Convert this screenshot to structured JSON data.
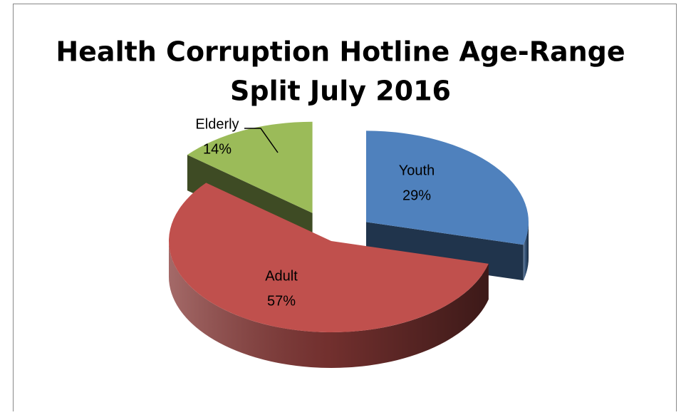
{
  "chart_data": {
    "type": "pie",
    "title": "Health Corruption Hotline Age-Range Split July 2016",
    "categories": [
      "Youth",
      "Adult",
      "Elderly"
    ],
    "values": [
      29,
      57,
      14
    ],
    "value_labels": [
      "29%",
      "57%",
      "14%"
    ],
    "colors": [
      "#4f81bd",
      "#c0504d",
      "#9bbb59"
    ]
  }
}
